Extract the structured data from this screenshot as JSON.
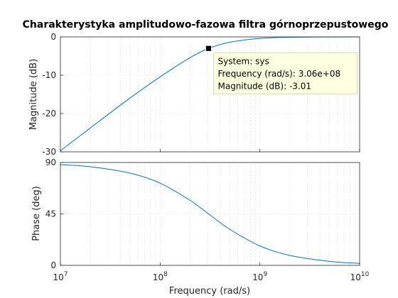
{
  "chart_data": {
    "type": "line",
    "title": "Charakterystyka amplitudowo-fazowa filtra górnoprzepustowego",
    "xlabel": "Frequency  (rad/s)",
    "x_scale": "log",
    "xlim": [
      10000000,
      10000000000
    ],
    "x_ticks": [
      {
        "value": 10000000,
        "base": "10",
        "exp": "7"
      },
      {
        "value": 100000000,
        "base": "10",
        "exp": "8"
      },
      {
        "value": 1000000000,
        "base": "10",
        "exp": "9"
      },
      {
        "value": 10000000000,
        "base": "10",
        "exp": "10"
      }
    ],
    "grid": true,
    "line_color": "#0072bd",
    "panels": [
      {
        "id": "magnitude",
        "ylabel": "Magnitude (dB)",
        "ylim": [
          -30,
          0
        ],
        "y_ticks": [
          0,
          -10,
          -20,
          -30
        ],
        "series": [
          {
            "x": [
              10000000,
              20000000,
              50000000,
              100000000,
              200000000,
              306000000,
              500000000,
              1000000000,
              2000000000,
              5000000000,
              10000000000
            ],
            "values": [
              -29.75,
              -23.74,
              -15.94,
              -10.43,
              -5.4,
              -3.01,
              -1.39,
              -0.39,
              -0.1,
              -0.02,
              0.0
            ]
          }
        ]
      },
      {
        "id": "phase",
        "ylabel": "Phase (deg)",
        "ylim": [
          0,
          90
        ],
        "y_ticks": [
          90,
          45,
          0
        ],
        "series": [
          {
            "x": [
              10000000,
              20000000,
              50000000,
              100000000,
              200000000,
              306000000,
              500000000,
              1000000000,
              2000000000,
              5000000000,
              10000000000
            ],
            "values": [
              88.1,
              86.3,
              80.7,
              71.9,
              56.8,
              45.0,
              31.5,
              17.0,
              8.7,
              3.5,
              1.75
            ]
          }
        ]
      }
    ],
    "datatip": {
      "panel": "magnitude",
      "x": 306000000,
      "y": -3.01,
      "lines": [
        "System: sys",
        "Frequency (rad/s): 3.06e+08",
        "Magnitude (dB): -3.01"
      ]
    }
  }
}
